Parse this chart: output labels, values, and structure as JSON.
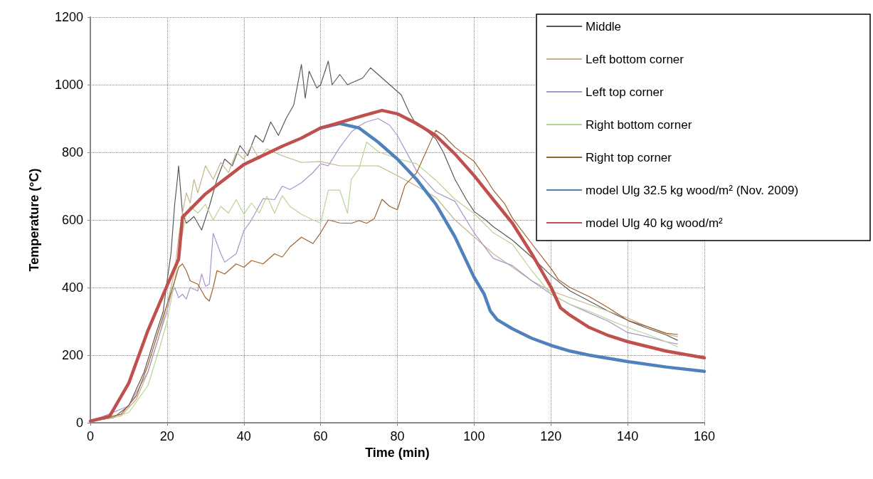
{
  "chart_data": {
    "type": "line",
    "xlabel": "Time (min)",
    "ylabel": "Temperature (°C)",
    "xlim": [
      0,
      160
    ],
    "xticks": [
      0,
      20,
      40,
      60,
      80,
      100,
      120,
      140,
      160
    ],
    "ylim": [
      0,
      1200
    ],
    "yticks": [
      0,
      200,
      400,
      600,
      800,
      1000,
      1200
    ],
    "grid": true,
    "legend": "top right",
    "marker": "none",
    "line_style": "solid",
    "series": [
      {
        "name": "Middle",
        "color": "#595959",
        "x": [
          0,
          6,
          10,
          14,
          17,
          19,
          20,
          21,
          22,
          22.5,
          23,
          24,
          25,
          27,
          29,
          31,
          33,
          35,
          37,
          39,
          41,
          43,
          45,
          47,
          49,
          51,
          53,
          55,
          56,
          57,
          59,
          60,
          62,
          63,
          65,
          67,
          69,
          71,
          73,
          75,
          77,
          79,
          81,
          83,
          85,
          87,
          89,
          90,
          92,
          95,
          98,
          100,
          103,
          105,
          110,
          115,
          120,
          125,
          130,
          135,
          140,
          145,
          150,
          153
        ],
        "values": [
          5,
          15,
          50,
          150,
          260,
          330,
          420,
          500,
          650,
          700,
          760,
          620,
          590,
          610,
          570,
          640,
          720,
          780,
          760,
          820,
          790,
          850,
          830,
          890,
          850,
          900,
          940,
          1060,
          960,
          1040,
          990,
          1000,
          1070,
          1000,
          1030,
          1000,
          1010,
          1020,
          1050,
          1030,
          1010,
          990,
          970,
          920,
          880,
          870,
          850,
          840,
          800,
          720,
          660,
          625,
          600,
          580,
          540,
          490,
          436,
          390,
          360,
          330,
          303,
          280,
          260,
          244
        ]
      },
      {
        "name": "Left bottom corner",
        "color": "#c4b48c",
        "x": [
          0,
          8,
          12,
          15,
          18,
          20,
          22,
          23,
          24,
          25,
          26,
          27,
          28,
          30,
          32,
          34,
          36,
          38,
          40,
          42,
          44,
          46,
          48,
          50,
          55,
          60,
          65,
          70,
          75,
          80,
          85,
          90,
          95,
          100,
          105,
          110,
          115,
          120,
          125,
          130,
          135,
          140,
          145,
          150,
          153
        ],
        "values": [
          3,
          20,
          70,
          150,
          260,
          350,
          450,
          550,
          620,
          680,
          650,
          720,
          680,
          760,
          720,
          770,
          740,
          800,
          780,
          820,
          780,
          810,
          800,
          790,
          770,
          773,
          760,
          760,
          760,
          731,
          700,
          667,
          600,
          550,
          500,
          460,
          420,
          390,
          370,
          350,
          330,
          310,
          285,
          262,
          255
        ]
      },
      {
        "name": "Left top corner",
        "color": "#a894c8",
        "x": [
          0,
          10,
          15,
          18,
          20,
          21,
          22,
          23,
          24,
          25,
          26,
          28,
          29,
          30,
          31,
          32,
          34,
          35,
          38,
          40,
          42,
          45,
          48,
          50,
          52,
          55,
          58,
          60,
          62,
          65,
          68,
          70,
          72,
          75,
          78,
          80,
          85,
          90,
          95,
          100,
          105,
          110,
          115,
          120,
          125,
          130,
          135,
          140,
          145,
          150,
          153
        ],
        "values": [
          3,
          50,
          150,
          260,
          330,
          380,
          400,
          370,
          380,
          366,
          400,
          390,
          440,
          404,
          410,
          560,
          500,
          475,
          500,
          568,
          600,
          663,
          660,
          700,
          690,
          710,
          740,
          766,
          760,
          815,
          860,
          878,
          890,
          900,
          880,
          850,
          745,
          682,
          655,
          562,
          486,
          465,
          420,
          381,
          350,
          325,
          300,
          267,
          255,
          240,
          233
        ]
      },
      {
        "name": "Right bottom corner",
        "color": "#b8d494",
        "x": [
          0,
          10,
          15,
          18,
          20,
          22,
          23,
          24,
          25,
          26,
          28,
          30,
          32,
          34,
          36,
          38,
          40,
          42,
          44,
          46,
          48,
          50,
          52,
          55,
          58,
          60,
          62,
          65,
          67,
          68,
          70,
          72,
          75,
          80,
          85,
          90,
          95,
          100,
          105,
          110,
          115,
          120,
          125,
          130,
          135,
          140,
          145,
          150,
          153
        ],
        "values": [
          2,
          30,
          110,
          220,
          300,
          420,
          500,
          560,
          617,
          640,
          620,
          646,
          600,
          640,
          620,
          660,
          617,
          650,
          620,
          670,
          620,
          672,
          640,
          617,
          600,
          591,
          688,
          688,
          620,
          720,
          752,
          830,
          802,
          781,
          766,
          718,
          661,
          619,
          562,
          528,
          450,
          381,
          350,
          330,
          305,
          282,
          262,
          240,
          225
        ]
      },
      {
        "name": "Right top corner",
        "color": "#a0622d",
        "x": [
          0,
          8,
          12,
          15,
          18,
          20,
          22,
          23,
          24,
          25,
          26,
          28,
          30,
          31,
          32,
          33,
          35,
          38,
          40,
          42,
          45,
          48,
          50,
          52,
          55,
          58,
          60,
          62,
          65,
          68,
          70,
          72,
          74,
          76,
          78,
          80,
          82,
          85,
          88,
          90,
          92,
          95,
          100,
          103,
          105,
          108,
          110,
          115,
          120,
          122,
          125,
          130,
          135,
          140,
          145,
          150,
          153
        ],
        "values": [
          5,
          25,
          80,
          170,
          280,
          350,
          420,
          460,
          470,
          450,
          420,
          410,
          370,
          360,
          400,
          450,
          440,
          470,
          460,
          480,
          470,
          500,
          490,
          520,
          549,
          530,
          562,
          600,
          591,
          590,
          598,
          590,
          604,
          661,
          640,
          630,
          703,
          739,
          815,
          865,
          850,
          815,
          773,
          724,
          688,
          647,
          605,
          530,
          457,
          423,
          400,
          373,
          340,
          303,
          285,
          265,
          261
        ]
      },
      {
        "name": "model Ulg 32.5 kg wood/m² (Nov. 2009)",
        "color": "#4f81bd",
        "x": [
          60,
          65,
          70,
          75,
          80,
          85,
          90,
          95,
          100,
          102.6,
          104.2,
          106,
          110,
          115,
          120,
          125,
          130,
          140,
          150,
          160
        ],
        "values": [
          872,
          885,
          872,
          830,
          780,
          720,
          647,
          550,
          430,
          381,
          331,
          305,
          278,
          250,
          229,
          212,
          200,
          181,
          165,
          152
        ]
      },
      {
        "name": "model Ulg 40 kg wood/m²",
        "color": "#c0504d",
        "x": [
          0,
          5,
          10,
          15,
          20,
          23,
          24,
          30,
          40,
          50,
          55,
          60,
          65,
          70,
          76,
          80,
          85,
          90,
          95,
          100,
          105,
          110,
          115,
          120,
          122.5,
          125,
          130,
          135,
          140,
          150,
          160
        ],
        "values": [
          5,
          19,
          117,
          273,
          406,
          484,
          608,
          677,
          764,
          818,
          842,
          872,
          888,
          905,
          924,
          914,
          885,
          850,
          795,
          731,
          660,
          590,
          500,
          402,
          340,
          318,
          282,
          258,
          240,
          212,
          192
        ]
      }
    ]
  }
}
